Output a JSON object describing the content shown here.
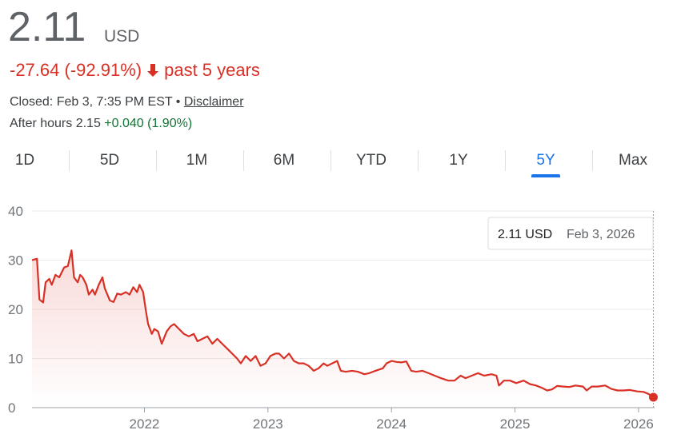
{
  "header": {
    "price": "2.11",
    "currency": "USD",
    "change": "-27.64 (-92.91%)",
    "period": "past 5 years",
    "closed": "Closed: Feb 3, 7:35 PM EST •",
    "disclaimer": "Disclaimer",
    "after_hours": "After hours 2.15",
    "after_hours_change": "+0.040 (1.90%)"
  },
  "tabs": {
    "items": [
      "1D",
      "5D",
      "1M",
      "6M",
      "YTD",
      "1Y",
      "5Y",
      "Max"
    ],
    "selected": 6
  },
  "chart_data": {
    "type": "line",
    "color": "#d93025",
    "x": [
      2021.09,
      2021.13,
      2021.15,
      2021.18,
      2021.2,
      2021.23,
      2021.25,
      2021.28,
      2021.31,
      2021.35,
      2021.38,
      2021.41,
      2021.43,
      2021.46,
      2021.48,
      2021.5,
      2021.53,
      2021.55,
      2021.58,
      2021.6,
      2021.63,
      2021.66,
      2021.68,
      2021.72,
      2021.75,
      2021.78,
      2021.81,
      2021.85,
      2021.88,
      2021.91,
      2021.94,
      2021.96,
      2021.99,
      2022.01,
      2022.03,
      2022.06,
      2022.08,
      2022.11,
      2022.14,
      2022.18,
      2022.21,
      2022.24,
      2022.28,
      2022.32,
      2022.36,
      2022.4,
      2022.43,
      2022.47,
      2022.51,
      2022.55,
      2022.59,
      2022.63,
      2022.67,
      2022.71,
      2022.75,
      2022.78,
      2022.82,
      2022.86,
      2022.9,
      2022.94,
      2022.98,
      2023.02,
      2023.06,
      2023.09,
      2023.13,
      2023.17,
      2023.21,
      2023.25,
      2023.29,
      2023.33,
      2023.37,
      2023.41,
      2023.45,
      2023.48,
      2023.52,
      2023.56,
      2023.59,
      2023.63,
      2023.68,
      2023.73,
      2023.78,
      2023.82,
      2023.87,
      2023.93,
      2023.96,
      2024.0,
      2024.04,
      2024.08,
      2024.12,
      2024.16,
      2024.2,
      2024.25,
      2024.3,
      2024.35,
      2024.4,
      2024.46,
      2024.51,
      2024.56,
      2024.6,
      2024.65,
      2024.7,
      2024.75,
      2024.81,
      2024.85,
      2024.87,
      2024.91,
      2024.96,
      2025.01,
      2025.07,
      2025.12,
      2025.17,
      2025.22,
      2025.26,
      2025.3,
      2025.34,
      2025.39,
      2025.44,
      2025.49,
      2025.55,
      2025.58,
      2025.62,
      2025.67,
      2025.73,
      2025.78,
      2025.83,
      2025.88,
      2025.93,
      2025.99,
      2026.04,
      2026.08,
      2026.12
    ],
    "values": [
      30,
      30.3,
      22,
      21.4,
      25.5,
      26.2,
      25,
      27,
      26.5,
      28.5,
      28.8,
      32,
      26.5,
      25.5,
      27,
      26.5,
      25,
      23,
      24,
      23,
      25,
      26.5,
      24.2,
      21.8,
      21.5,
      23.2,
      23,
      23.5,
      23,
      24.5,
      23.5,
      25,
      23.5,
      20,
      17,
      15,
      16,
      15.5,
      13,
      15.5,
      16.5,
      17,
      16,
      15,
      14.5,
      15,
      13.5,
      14,
      14.5,
      13,
      14,
      13,
      12,
      11,
      10,
      9,
      10.5,
      9.5,
      10.5,
      8.5,
      9,
      10.5,
      11,
      11,
      10,
      11,
      9.5,
      9,
      9,
      8.5,
      7.5,
      8,
      9,
      8.5,
      9,
      9.5,
      7.5,
      7.3,
      7.5,
      7.3,
      6.8,
      7,
      7.5,
      8,
      9,
      9.5,
      9.3,
      9.2,
      9.4,
      7.5,
      7.3,
      7.5,
      7,
      6.5,
      6,
      5.5,
      5.5,
      6.5,
      6,
      6.5,
      7,
      6.5,
      6.8,
      6.5,
      4.5,
      5.5,
      5.5,
      5,
      5.5,
      4.8,
      4.5,
      4,
      3.5,
      3.7,
      4.4,
      4.3,
      4.2,
      4.5,
      4.3,
      3.5,
      4.3,
      4.3,
      4.5,
      3.8,
      3.5,
      3.5,
      3.6,
      3.3,
      3.2,
      2.8,
      2.11
    ],
    "xlim": [
      2021.09,
      2026.13
    ],
    "xticks": [
      2022,
      2023,
      2024,
      2025,
      2026
    ],
    "ylim": [
      0,
      40
    ],
    "yticks": [
      0,
      10,
      20,
      30,
      40
    ],
    "grid": true,
    "tooltip": {
      "value": "2.11 USD",
      "date": "Feb 3, 2026"
    }
  }
}
